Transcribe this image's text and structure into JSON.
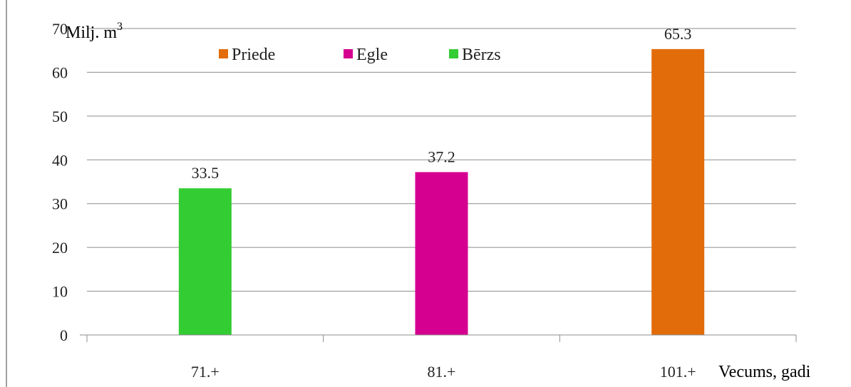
{
  "chart_data": {
    "type": "bar",
    "categories": [
      "71.+",
      "81.+",
      "101.+"
    ],
    "values": [
      33.5,
      37.2,
      65.3
    ],
    "value_labels": [
      "33.5",
      "37.2",
      "65.3"
    ],
    "bar_series": [
      "Bērzs",
      "Egle",
      "Priede"
    ],
    "series": [
      {
        "name": "Priede",
        "color": "#E36C0A"
      },
      {
        "name": "Egle",
        "color": "#D5008F"
      },
      {
        "name": "Bērzs",
        "color": "#33CC33"
      }
    ],
    "ylim": [
      0,
      70
    ],
    "yticks": [
      0,
      10,
      20,
      30,
      40,
      50,
      60,
      70
    ],
    "ylabel": "Milj. m",
    "ylabel_sup": "3",
    "xlabel": "Vecums, gadi",
    "grid": true,
    "legend_position": "top"
  }
}
